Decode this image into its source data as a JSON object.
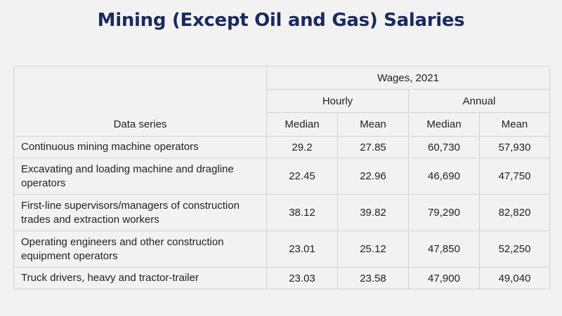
{
  "title": "Mining (Except Oil and Gas) Salaries",
  "table": {
    "group_header": "Wages, 2021",
    "hourly_header": "Hourly",
    "annual_header": "Annual",
    "series_header": "Data series",
    "col_median_1": "Median",
    "col_mean_1": "Mean",
    "col_median_2": "Median",
    "col_mean_2": "Mean",
    "rows": [
      {
        "label": "Continuous mining machine operators",
        "hourly_median": "29.2",
        "hourly_mean": "27.85",
        "annual_median": "60,730",
        "annual_mean": "57,930"
      },
      {
        "label": "Excavating and loading machine and dragline operators",
        "hourly_median": "22.45",
        "hourly_mean": "22.96",
        "annual_median": "46,690",
        "annual_mean": "47,750"
      },
      {
        "label": "First-line supervisors/managers of construction trades and extraction workers",
        "hourly_median": "38.12",
        "hourly_mean": "39.82",
        "annual_median": "79,290",
        "annual_mean": "82,820"
      },
      {
        "label": "Operating engineers and other construction equipment operators",
        "hourly_median": "23.01",
        "hourly_mean": "25.12",
        "annual_median": "47,850",
        "annual_mean": "52,250"
      },
      {
        "label": "Truck drivers, heavy and tractor-trailer",
        "hourly_median": "23.03",
        "hourly_mean": "23.58",
        "annual_median": "47,900",
        "annual_mean": "49,040"
      }
    ]
  },
  "chart_data": {
    "type": "table",
    "title": "Mining (Except Oil and Gas) Salaries",
    "columns": [
      "Data series",
      "Hourly Median",
      "Hourly Mean",
      "Annual Median",
      "Annual Mean"
    ],
    "rows": [
      [
        "Continuous mining machine operators",
        29.2,
        27.85,
        60730,
        57930
      ],
      [
        "Excavating and loading machine and dragline operators",
        22.45,
        22.96,
        46690,
        47750
      ],
      [
        "First-line supervisors/managers of construction trades and extraction workers",
        38.12,
        39.82,
        79290,
        82820
      ],
      [
        "Operating engineers and other construction equipment operators",
        23.01,
        25.12,
        47850,
        52250
      ],
      [
        "Truck drivers, heavy and tractor-trailer",
        23.03,
        23.58,
        47900,
        49040
      ]
    ]
  },
  "colors": {
    "title": "#1a2a5e",
    "background": "#f2f2f3",
    "grid": "#d3d3d6"
  }
}
